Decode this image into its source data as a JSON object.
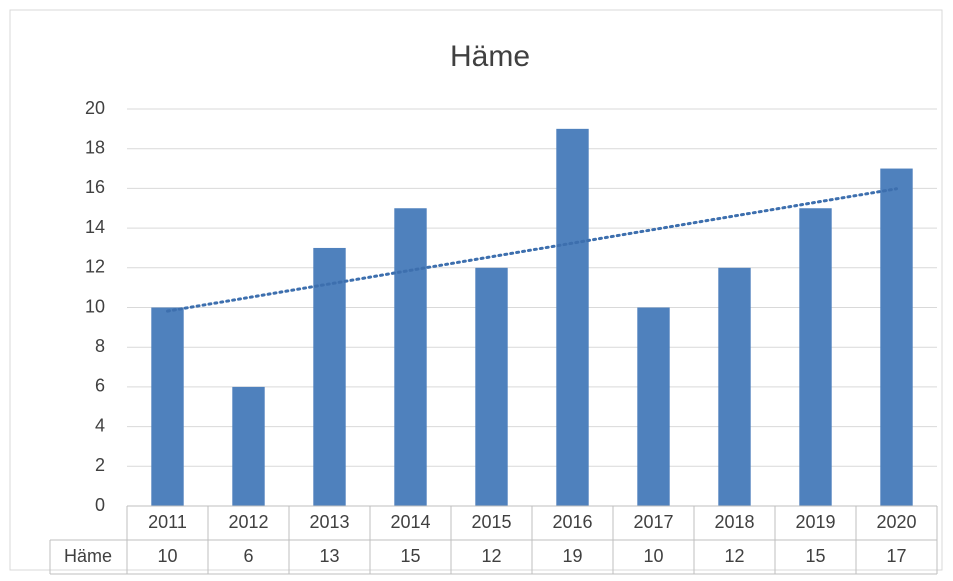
{
  "chart_data": {
    "type": "bar",
    "title": "Häme",
    "categories": [
      "2011",
      "2012",
      "2013",
      "2014",
      "2015",
      "2016",
      "2017",
      "2018",
      "2019",
      "2020"
    ],
    "series": [
      {
        "name": "Häme",
        "color": "#4f81bd",
        "values": [
          10,
          6,
          13,
          15,
          12,
          19,
          10,
          12,
          15,
          17
        ]
      }
    ],
    "ylim": [
      0,
      20
    ],
    "yticks": [
      0,
      2,
      4,
      6,
      8,
      10,
      12,
      14,
      16,
      18,
      20
    ],
    "grid": true,
    "trendline": "linear",
    "trendline_color": "#3d6fae",
    "data_table": true
  }
}
